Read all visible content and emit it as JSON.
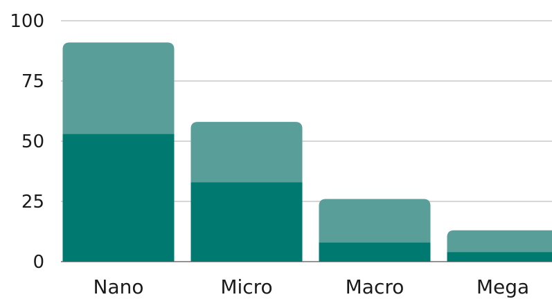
{
  "chart_data": {
    "type": "bar",
    "stacked": true,
    "categories": [
      "Nano",
      "Micro",
      "Macro",
      "Mega"
    ],
    "series": [
      {
        "values": [
          53,
          33,
          8,
          4
        ],
        "color": "#007a70"
      },
      {
        "values": [
          38,
          25,
          18,
          9
        ],
        "color": "#5a9e9a"
      }
    ],
    "ylim": [
      0,
      100
    ],
    "yticks": [
      "0",
      "25",
      "50",
      "75",
      "100"
    ],
    "grid": true,
    "legend": "none"
  }
}
